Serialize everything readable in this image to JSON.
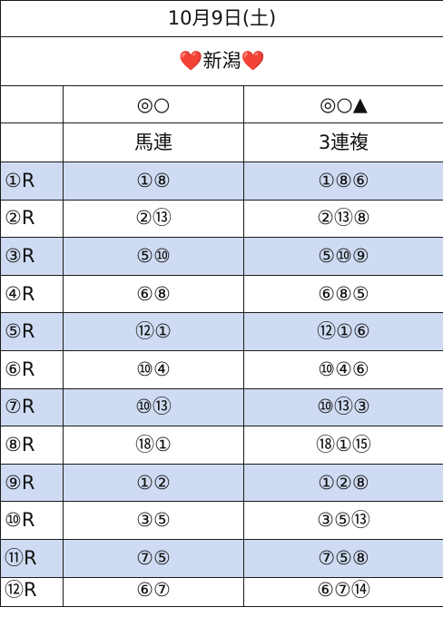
{
  "header": {
    "date": "10月9日(土)",
    "venue": "新潟",
    "heart_icon": "❤️"
  },
  "columns": {
    "uma_symbols": "◎○",
    "sanren_symbols": "◎○▲",
    "uma_label": "馬連",
    "sanren_label": "3連複"
  },
  "rows": [
    {
      "race": "①R",
      "umaren": "①⑧",
      "sanrenpuku": "①⑧⑥"
    },
    {
      "race": "②R",
      "umaren": "②⑬",
      "sanrenpuku": "②⑬⑧"
    },
    {
      "race": "③R",
      "umaren": "⑤⑩",
      "sanrenpuku": "⑤⑩⑨"
    },
    {
      "race": "④R",
      "umaren": "⑥⑧",
      "sanrenpuku": "⑥⑧⑤"
    },
    {
      "race": "⑤R",
      "umaren": "⑫①",
      "sanrenpuku": "⑫①⑥"
    },
    {
      "race": "⑥R",
      "umaren": "⑩④",
      "sanrenpuku": "⑩④⑥"
    },
    {
      "race": "⑦R",
      "umaren": "⑩⑬",
      "sanrenpuku": "⑩⑬③"
    },
    {
      "race": "⑧R",
      "umaren": "⑱①",
      "sanrenpuku": "⑱①⑮"
    },
    {
      "race": "⑨R",
      "umaren": "①②",
      "sanrenpuku": "①②⑧"
    },
    {
      "race": "⑩R",
      "umaren": "③⑤",
      "sanrenpuku": "③⑤⑬"
    },
    {
      "race": "⑪R",
      "umaren": "⑦⑤",
      "sanrenpuku": "⑦⑤⑧"
    },
    {
      "race": "⑫R",
      "umaren": "⑥⑦",
      "sanrenpuku": "⑥⑦⑭"
    }
  ],
  "colors": {
    "shaded_row": "#cfdbf2",
    "heart": "#e3222e",
    "border": "#1a1a1a"
  }
}
